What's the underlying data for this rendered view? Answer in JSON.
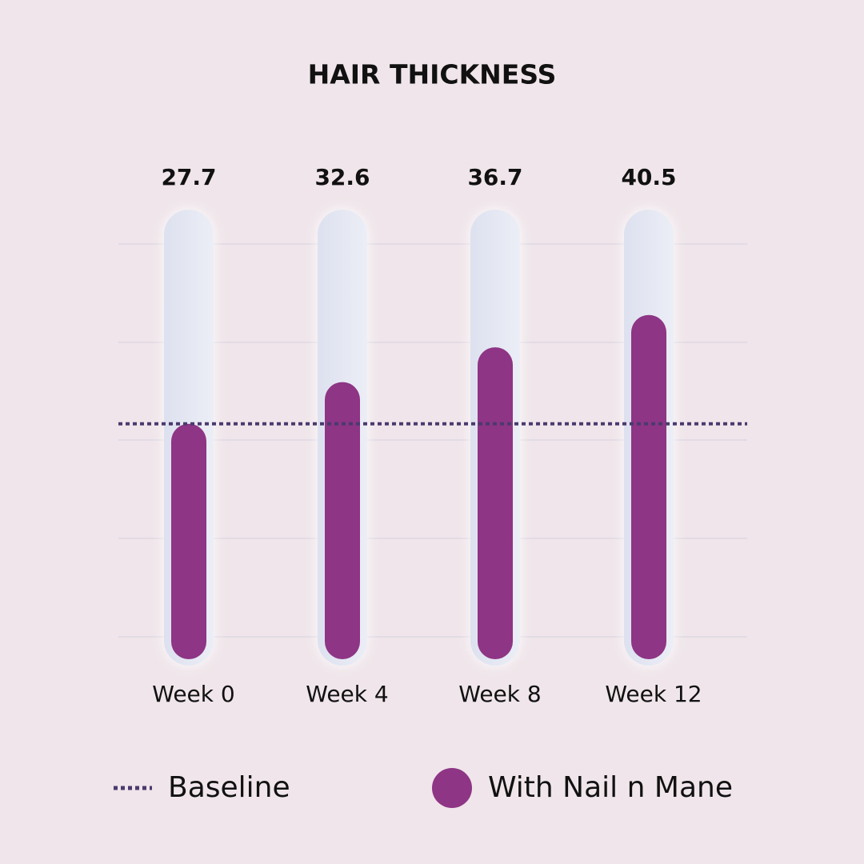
{
  "chart_data": {
    "type": "bar",
    "title": "HAIR THICKNESS",
    "categories": [
      "Week 0",
      "Week 4",
      "Week 8",
      "Week 12"
    ],
    "series": [
      {
        "name": "With Nail n Mane",
        "color": "#8e3585",
        "values": [
          27.7,
          32.6,
          36.7,
          40.5
        ]
      }
    ],
    "baseline": {
      "name": "Baseline",
      "value": 27.7,
      "color": "#4b3a6e"
    },
    "ylim": [
      0,
      48
    ]
  }
}
